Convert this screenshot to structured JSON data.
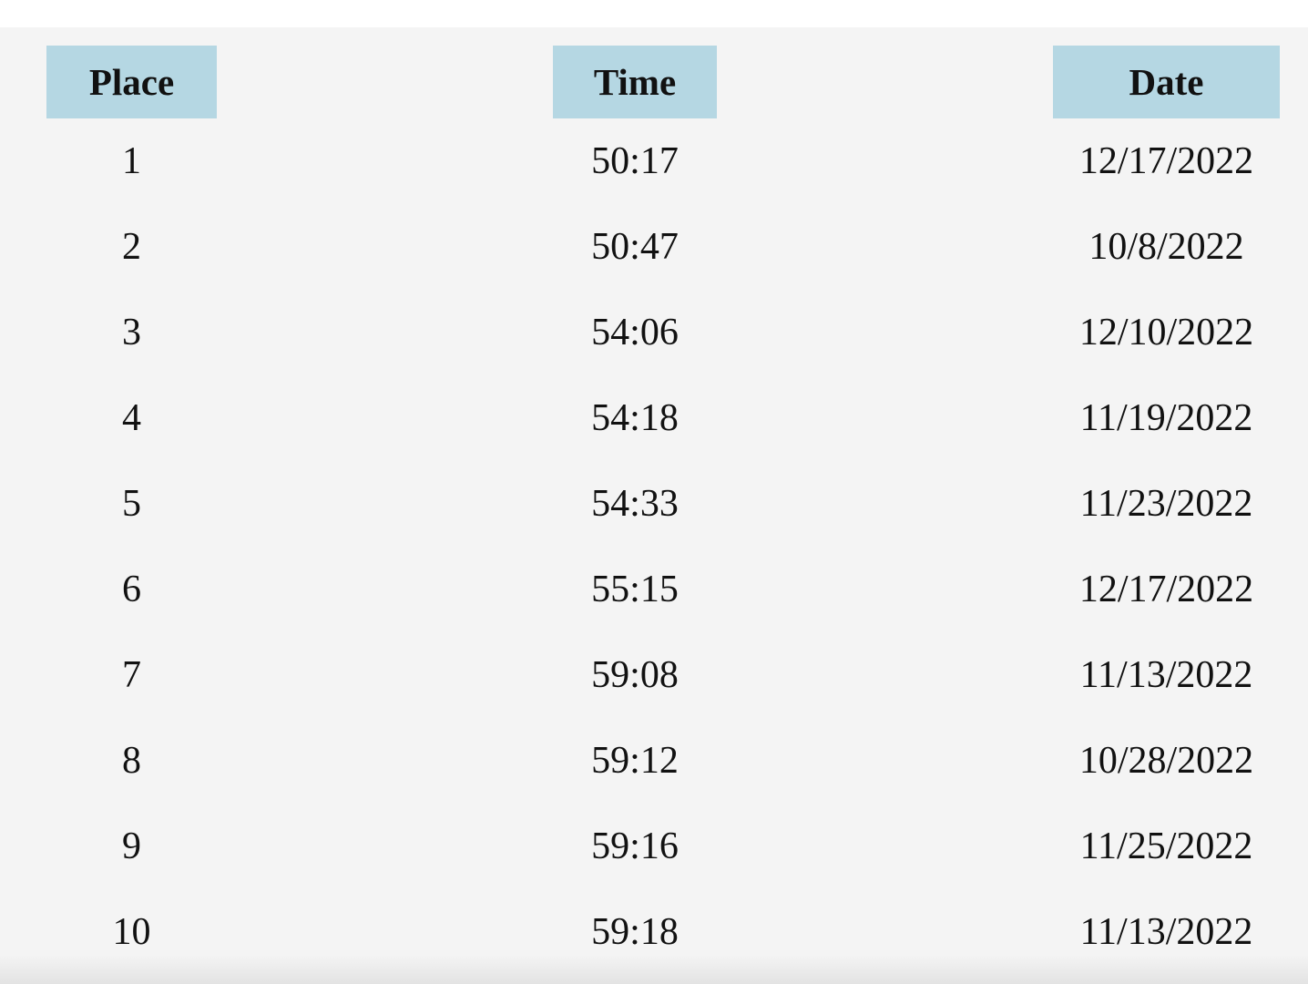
{
  "table": {
    "headers": {
      "place": "Place",
      "time": "Time",
      "date": "Date"
    },
    "header_color": "#b5d7e3",
    "background_color": "#f4f4f4",
    "rows": [
      {
        "place": "1",
        "time": "50:17",
        "date": "12/17/2022"
      },
      {
        "place": "2",
        "time": "50:47",
        "date": "10/8/2022"
      },
      {
        "place": "3",
        "time": "54:06",
        "date": "12/10/2022"
      },
      {
        "place": "4",
        "time": "54:18",
        "date": "11/19/2022"
      },
      {
        "place": "5",
        "time": "54:33",
        "date": "11/23/2022"
      },
      {
        "place": "6",
        "time": "55:15",
        "date": "12/17/2022"
      },
      {
        "place": "7",
        "time": "59:08",
        "date": "11/13/2022"
      },
      {
        "place": "8",
        "time": "59:12",
        "date": "10/28/2022"
      },
      {
        "place": "9",
        "time": "59:16",
        "date": "11/25/2022"
      },
      {
        "place": "10",
        "time": "59:18",
        "date": "11/13/2022"
      }
    ]
  }
}
